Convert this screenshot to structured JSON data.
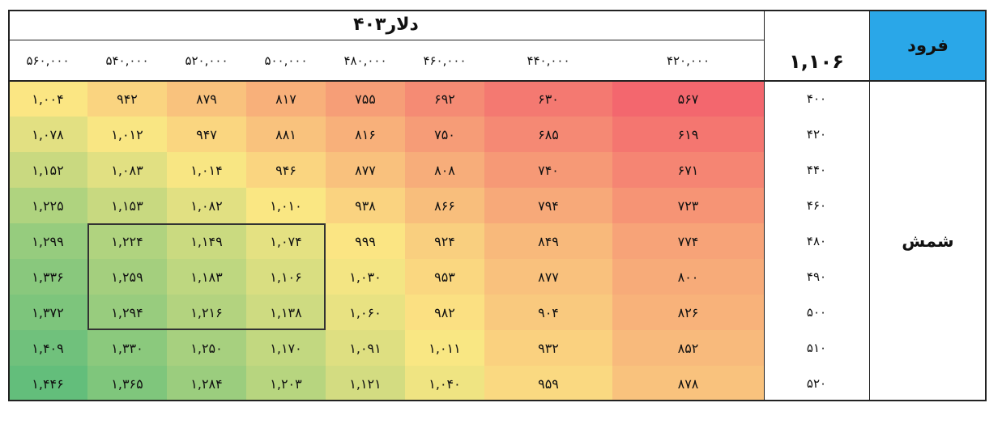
{
  "header": {
    "title": "دلار۴۰۳",
    "price": "۱,۱۰۶",
    "corner_label": "فرود"
  },
  "row_group_label": "شمش",
  "colors": {
    "low": "#f3676e",
    "mid": "#fbe783",
    "high": "#63be7b",
    "corner_bg": "#2aa7e8"
  },
  "chart_data": {
    "type": "heatmap",
    "title": "دلار۴۰۳",
    "columns": [
      "۴۲۰,۰۰۰",
      "۴۴۰,۰۰۰",
      "۴۶۰,۰۰۰",
      "۴۸۰,۰۰۰",
      "۵۰۰,۰۰۰",
      "۵۲۰,۰۰۰",
      "۵۴۰,۰۰۰",
      "۵۶۰,۰۰۰"
    ],
    "rows": [
      "۴۰۰",
      "۴۲۰",
      "۴۴۰",
      "۴۶۰",
      "۴۸۰",
      "۴۹۰",
      "۵۰۰",
      "۵۱۰",
      "۵۲۰"
    ],
    "values": [
      [
        567,
        630,
        692,
        755,
        817,
        879,
        942,
        1004
      ],
      [
        619,
        685,
        750,
        816,
        881,
        947,
        1012,
        1078
      ],
      [
        671,
        740,
        808,
        877,
        946,
        1014,
        1083,
        1152
      ],
      [
        723,
        794,
        866,
        938,
        1010,
        1082,
        1153,
        1225
      ],
      [
        774,
        849,
        924,
        999,
        1074,
        1149,
        1224,
        1299
      ],
      [
        800,
        877,
        953,
        1030,
        1106,
        1183,
        1259,
        1336
      ],
      [
        826,
        904,
        982,
        1060,
        1138,
        1216,
        1294,
        1372
      ],
      [
        852,
        932,
        1011,
        1091,
        1170,
        1250,
        1330,
        1409
      ],
      [
        878,
        959,
        1040,
        1121,
        1203,
        1284,
        1365,
        1446
      ]
    ],
    "value_labels": [
      [
        "۵۶۷",
        "۶۳۰",
        "۶۹۲",
        "۷۵۵",
        "۸۱۷",
        "۸۷۹",
        "۹۴۲",
        "۱,۰۰۴"
      ],
      [
        "۶۱۹",
        "۶۸۵",
        "۷۵۰",
        "۸۱۶",
        "۸۸۱",
        "۹۴۷",
        "۱,۰۱۲",
        "۱,۰۷۸"
      ],
      [
        "۶۷۱",
        "۷۴۰",
        "۸۰۸",
        "۸۷۷",
        "۹۴۶",
        "۱,۰۱۴",
        "۱,۰۸۳",
        "۱,۱۵۲"
      ],
      [
        "۷۲۳",
        "۷۹۴",
        "۸۶۶",
        "۹۳۸",
        "۱,۰۱۰",
        "۱,۰۸۲",
        "۱,۱۵۳",
        "۱,۲۲۵"
      ],
      [
        "۷۷۴",
        "۸۴۹",
        "۹۲۴",
        "۹۹۹",
        "۱,۰۷۴",
        "۱,۱۴۹",
        "۱,۲۲۴",
        "۱,۲۹۹"
      ],
      [
        "۸۰۰",
        "۸۷۷",
        "۹۵۳",
        "۱,۰۳۰",
        "۱,۱۰۶",
        "۱,۱۸۳",
        "۱,۲۵۹",
        "۱,۳۳۶"
      ],
      [
        "۸۲۶",
        "۹۰۴",
        "۹۸۲",
        "۱,۰۶۰",
        "۱,۱۳۸",
        "۱,۲۱۶",
        "۱,۲۹۴",
        "۱,۳۷۲"
      ],
      [
        "۸۵۲",
        "۹۳۲",
        "۱,۰۱۱",
        "۱,۰۹۱",
        "۱,۱۷۰",
        "۱,۲۵۰",
        "۱,۳۳۰",
        "۱,۴۰۹"
      ],
      [
        "۸۷۸",
        "۹۵۹",
        "۱,۰۴۰",
        "۱,۱۲۱",
        "۱,۲۰۳",
        "۱,۲۸۴",
        "۱,۳۶۵",
        "۱,۴۴۶"
      ]
    ],
    "color_scale": {
      "min": 567,
      "max": 1446,
      "colors": [
        "#f3676e",
        "#fbe783",
        "#63be7b"
      ]
    },
    "highlight": {
      "rows": [
        "۴۸۰",
        "۵۰۰"
      ],
      "columns": [
        "۵۰۰,۰۰۰",
        "۵۴۰,۰۰۰"
      ]
    }
  }
}
